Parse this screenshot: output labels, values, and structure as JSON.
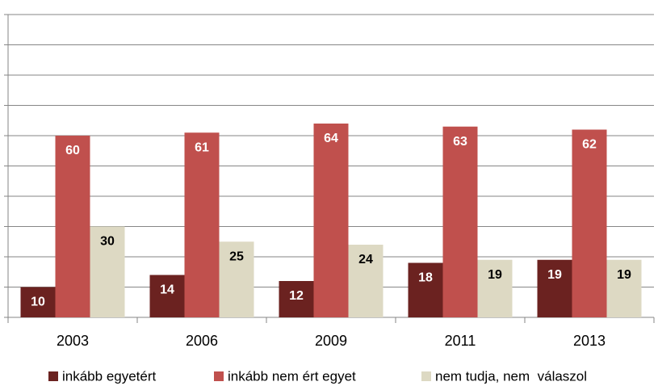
{
  "chart_data": {
    "type": "bar",
    "categories": [
      "2003",
      "2006",
      "2009",
      "2011",
      "2013"
    ],
    "series": [
      {
        "name": "inkább egyetért",
        "color": "#6b2220",
        "values": [
          10,
          14,
          12,
          18,
          19
        ]
      },
      {
        "name": "inkább nem ért egyet",
        "color": "#c0504d",
        "values": [
          60,
          61,
          64,
          63,
          62
        ]
      },
      {
        "name": "nem tudja, nem  válaszol",
        "color": "#ddd9c3",
        "values": [
          30,
          25,
          24,
          19,
          19
        ]
      }
    ],
    "label_colors": [
      "#ffffff",
      "#ffffff",
      "#000000"
    ],
    "ylim": [
      0,
      100
    ],
    "yticks": [
      0,
      10,
      20,
      30,
      40,
      50,
      60,
      70,
      80,
      90,
      100
    ],
    "grid": true,
    "legend": "bottom"
  }
}
